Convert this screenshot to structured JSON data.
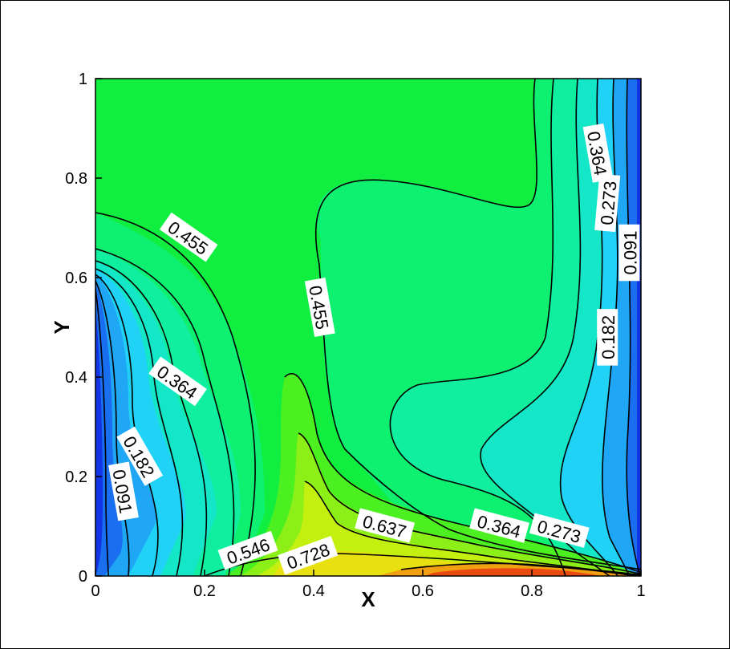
{
  "chart_data": {
    "type": "contour",
    "title": "",
    "xlabel": "X",
    "ylabel": "Y",
    "xlim": [
      0,
      1
    ],
    "ylim": [
      0,
      1
    ],
    "x_ticks": [
      "0",
      "0.2",
      "0.4",
      "0.6",
      "0.8",
      "1"
    ],
    "y_ticks": [
      "0",
      "0.2",
      "0.4",
      "0.6",
      "0.8",
      "1"
    ],
    "colormap": [
      "#1233e6",
      "#1a6ef0",
      "#1fa6f5",
      "#22d9f7",
      "#10f0c0",
      "#0ef088",
      "#10f050",
      "#60f020",
      "#c8f010",
      "#f0c810",
      "#f07810",
      "#e03010"
    ],
    "contour_labels": [
      {
        "text": "0.455",
        "x": 0.17,
        "y": 0.68,
        "angle": 35
      },
      {
        "text": "0.455",
        "x": 0.41,
        "y": 0.54,
        "angle": 80
      },
      {
        "text": "0.364",
        "x": 0.92,
        "y": 0.85,
        "angle": 80
      },
      {
        "text": "0.273",
        "x": 0.94,
        "y": 0.75,
        "angle": -85
      },
      {
        "text": "0.091",
        "x": 0.98,
        "y": 0.65,
        "angle": -90
      },
      {
        "text": "0.182",
        "x": 0.94,
        "y": 0.48,
        "angle": -90
      },
      {
        "text": "0.364",
        "x": 0.15,
        "y": 0.39,
        "angle": 35
      },
      {
        "text": "0.182",
        "x": 0.08,
        "y": 0.24,
        "angle": 60
      },
      {
        "text": "0.091",
        "x": 0.05,
        "y": 0.17,
        "angle": 80
      },
      {
        "text": "0.546",
        "x": 0.28,
        "y": 0.05,
        "angle": -20
      },
      {
        "text": "0.728",
        "x": 0.39,
        "y": 0.04,
        "angle": -20
      },
      {
        "text": "0.637",
        "x": 0.53,
        "y": 0.1,
        "angle": 15
      },
      {
        "text": "0.364",
        "x": 0.74,
        "y": 0.1,
        "angle": 15
      },
      {
        "text": "0.273",
        "x": 0.85,
        "y": 0.09,
        "angle": 15
      }
    ]
  }
}
